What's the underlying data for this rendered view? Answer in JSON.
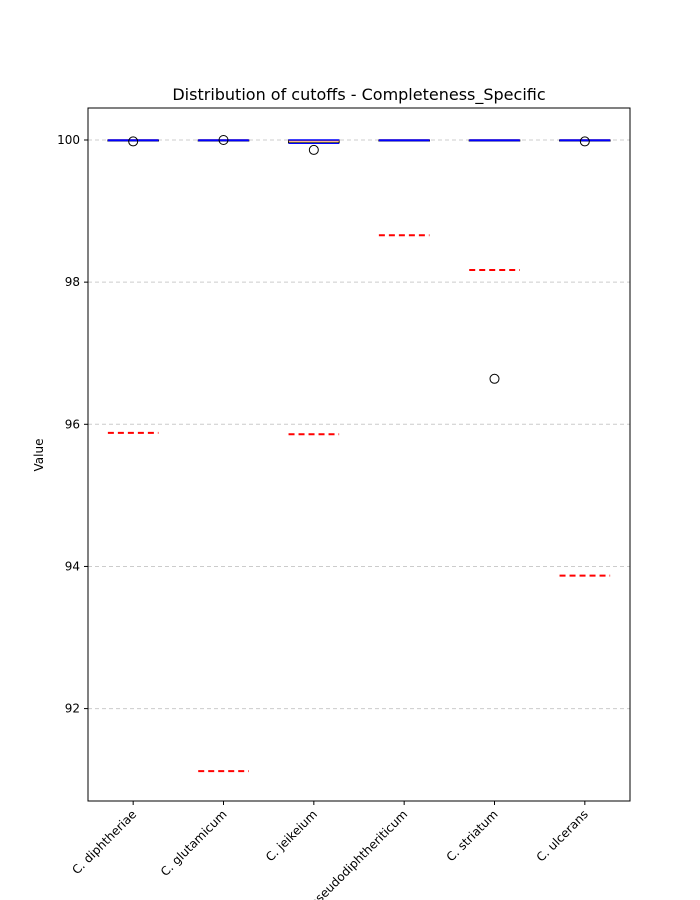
{
  "chart_data": {
    "type": "box",
    "title": "Distribution of cutoffs - Completeness_Specific",
    "xlabel": "",
    "ylabel": "Value",
    "ylim": [
      90.7,
      100.45
    ],
    "yticks": [
      92,
      94,
      96,
      98,
      100
    ],
    "grid": "y-dashed",
    "categories": [
      "C. diphtheriae",
      "C. glutamicum",
      "C. jeikeium",
      "C. pseudodiphtheriticum",
      "C. striatum",
      "C. ulcerans"
    ],
    "boxes": [
      {
        "q1": 99.99,
        "median": 100.0,
        "q3": 100.0,
        "whisker_low": 99.99,
        "whisker_high": 100.0,
        "outliers": [
          99.98
        ]
      },
      {
        "q1": 99.99,
        "median": 100.0,
        "q3": 100.0,
        "whisker_low": 99.99,
        "whisker_high": 100.0,
        "outliers": [
          100.0
        ]
      },
      {
        "q1": 99.96,
        "median": 99.99,
        "q3": 100.0,
        "whisker_low": 99.95,
        "whisker_high": 100.0,
        "outliers": [
          99.86
        ]
      },
      {
        "q1": 99.99,
        "median": 100.0,
        "q3": 100.0,
        "whisker_low": 99.99,
        "whisker_high": 100.0,
        "outliers": []
      },
      {
        "q1": 99.99,
        "median": 100.0,
        "q3": 100.0,
        "whisker_low": 99.99,
        "whisker_high": 100.0,
        "outliers": [
          96.64
        ]
      },
      {
        "q1": 99.99,
        "median": 100.0,
        "q3": 100.0,
        "whisker_low": 99.99,
        "whisker_high": 100.0,
        "outliers": [
          99.98
        ]
      }
    ],
    "cutoffs": [
      95.88,
      91.12,
      95.86,
      98.66,
      98.17,
      93.87
    ],
    "colors": {
      "box": "#000000",
      "median": "#ff7f0e",
      "whisker_cap": "#0000ff",
      "cutoff": "#ff0000",
      "grid": "#cccccc"
    }
  }
}
